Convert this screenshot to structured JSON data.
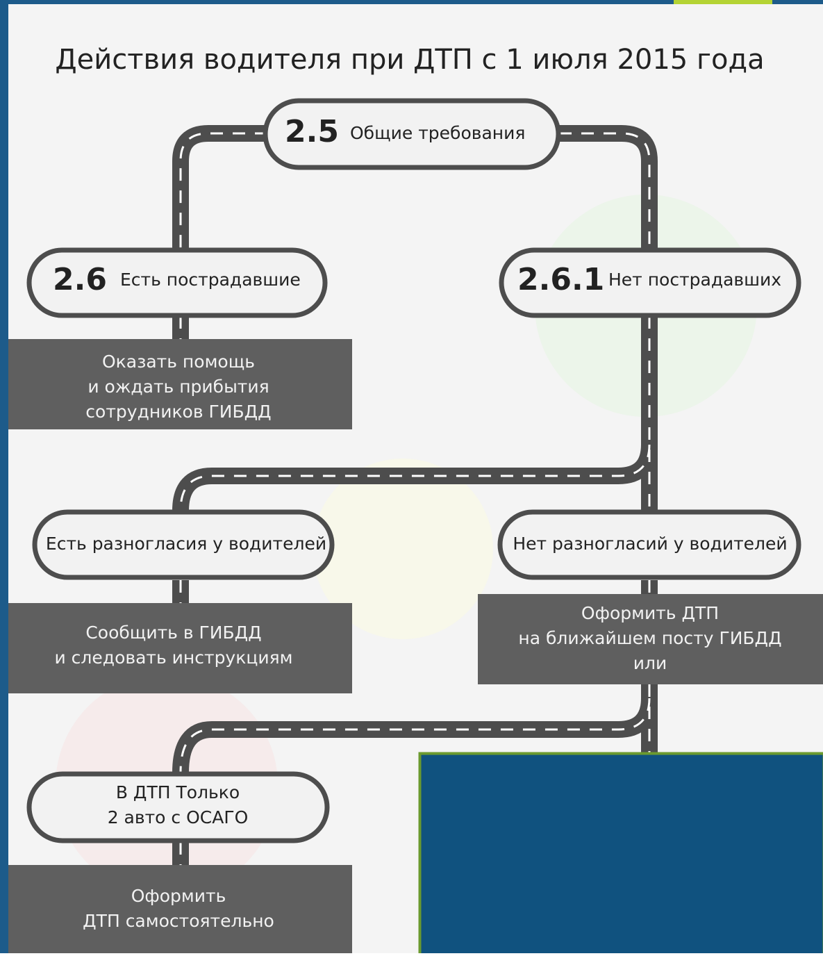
{
  "title": "Действия водителя при ДТП с 1 июля 2015 года",
  "nodes": [
    {
      "number": "2.5",
      "label": "Общие требования"
    },
    {
      "number": "2.6",
      "label": "Есть пострадавшие"
    },
    {
      "number": "2.6.1",
      "label": "Нет пострадавших"
    },
    {
      "label": "Есть разногласия у водителей"
    },
    {
      "label": "Нет  разногласий у водителей"
    },
    {
      "lines": [
        "В ДТП Только",
        "2 авто с ОСАГО"
      ]
    }
  ],
  "actions": [
    {
      "lines": [
        "Оказать помощь",
        "и ождать прибытия",
        "сотрудников ГИБДД"
      ]
    },
    {
      "lines": [
        "Сообщить в ГИБДД",
        "и следовать инструкциям"
      ]
    },
    {
      "lines": [
        "Оформить  ДТП",
        "на ближайшем посту ГИБДД",
        "или"
      ]
    },
    {
      "lines": [
        "Оформить",
        "ДТП самостоятельно"
      ]
    }
  ]
}
